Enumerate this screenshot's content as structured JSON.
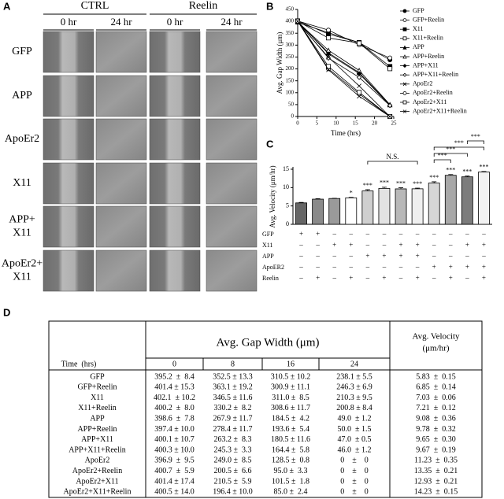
{
  "panel_labels": [
    "A",
    "B",
    "C",
    "D"
  ],
  "panel_a": {
    "groups": [
      "CTRL",
      "Reelin"
    ],
    "columns": [
      "0 hr",
      "24 hr",
      "0 hr",
      "24 hr"
    ],
    "rows": [
      [
        "GFP"
      ],
      [
        "APP"
      ],
      [
        "ApoEr2"
      ],
      [
        "X11"
      ],
      [
        "APP+",
        "X11"
      ],
      [
        "ApoEr2+",
        "X11"
      ]
    ]
  },
  "chart_data": [
    {
      "type": "line",
      "xlabel": "Time (hrs)",
      "ylabel": "Avg. Gap Width (μm)",
      "x": [
        0,
        8,
        16,
        24
      ],
      "xlim": [
        0,
        25
      ],
      "xticks": [
        0,
        5,
        10,
        15,
        20,
        25
      ],
      "ylim": [
        0,
        450
      ],
      "yticks": [
        0,
        50,
        100,
        150,
        200,
        250,
        300,
        350,
        400,
        450
      ],
      "series": [
        {
          "name": "GFP",
          "color": "#000000",
          "marker": "circle",
          "values": [
            395.2,
            352.5,
            310.5,
            238.1
          ]
        },
        {
          "name": "GFP+Reelin",
          "color": "#000000",
          "marker": "circle-open",
          "values": [
            401.4,
            363.1,
            300.9,
            246.3
          ]
        },
        {
          "name": "X11",
          "color": "#000000",
          "marker": "square",
          "values": [
            402.1,
            346.5,
            311.0,
            210.3
          ]
        },
        {
          "name": "X11+Reelin",
          "color": "#000000",
          "marker": "square-open",
          "values": [
            400.2,
            330.2,
            308.6,
            200.8
          ]
        },
        {
          "name": "APP",
          "color": "#000000",
          "marker": "triangle",
          "values": [
            398.6,
            267.9,
            184.5,
            49.0
          ]
        },
        {
          "name": "APP+Reelin",
          "color": "#000000",
          "marker": "triangle-open",
          "values": [
            397.4,
            278.4,
            193.6,
            50.0
          ]
        },
        {
          "name": "APP+X11",
          "color": "#000000",
          "marker": "diamond",
          "values": [
            400.1,
            263.2,
            180.5,
            47.0
          ]
        },
        {
          "name": "APP+X11+Reelin",
          "color": "#000000",
          "marker": "diamond-open",
          "values": [
            400.3,
            245.3,
            164.4,
            46.0
          ]
        },
        {
          "name": "ApoEr2",
          "color": "#000000",
          "marker": "cross",
          "values": [
            396.9,
            249.0,
            128.5,
            0
          ]
        },
        {
          "name": "ApoEr2+Reelin",
          "color": "#000000",
          "marker": "circle-open",
          "values": [
            400.7,
            200.5,
            95.0,
            0
          ]
        },
        {
          "name": "ApoEr2+X11",
          "color": "#000000",
          "marker": "square-open",
          "values": [
            401.4,
            210.5,
            101.5,
            0
          ]
        },
        {
          "name": "ApoEr2+X11+Reelin",
          "color": "#000000",
          "marker": "cross",
          "values": [
            400.5,
            196.4,
            85.0,
            0
          ]
        }
      ]
    },
    {
      "type": "bar",
      "ylabel": "Avg. Velocity (μm/hr)",
      "categories": [
        null,
        null,
        null,
        null,
        null,
        null,
        null,
        null,
        null,
        null,
        null,
        null
      ],
      "values": [
        5.83,
        6.85,
        7.03,
        7.21,
        9.08,
        9.78,
        9.65,
        9.67,
        11.23,
        13.35,
        12.93,
        14.23
      ],
      "errors": [
        0.15,
        0.14,
        0.06,
        0.12,
        0.36,
        0.32,
        0.3,
        0.19,
        0.35,
        0.21,
        0.21,
        0.15
      ],
      "colors": [
        "#666666",
        "#8a8a8a",
        "#9a9a9a",
        "#ffffff",
        "#cfcfcf",
        "#e2e2e2",
        "#b8b8b8",
        "#efefef",
        "#d6d6d6",
        "#a8a8a8",
        "#7c7c7c",
        "#f2f2f2"
      ],
      "ylim": [
        0,
        15
      ],
      "yticks": [
        0,
        5,
        10,
        15
      ],
      "bar_labels": [
        null,
        null,
        null,
        "*",
        "***",
        "***",
        "***",
        "***",
        "***",
        "***",
        "***",
        "***"
      ],
      "brackets": [
        {
          "from": 4,
          "to": 7,
          "label": "N.S."
        },
        {
          "from": 8,
          "to": 9,
          "label": "***"
        },
        {
          "from": 8,
          "to": 10,
          "label": "***"
        },
        {
          "from": 8,
          "to": 11,
          "label": "***"
        },
        {
          "from": 10,
          "to": 11,
          "label": "***"
        }
      ],
      "condition_matrix": [
        {
          "name": "GFP",
          "signs": [
            "+",
            "+",
            "–",
            "–",
            "–",
            "–",
            "–",
            "–",
            "–",
            "–",
            "–",
            "–"
          ]
        },
        {
          "name": "X11",
          "signs": [
            "–",
            "–",
            "+",
            "+",
            "–",
            "–",
            "+",
            "+",
            "–",
            "–",
            "+",
            "+"
          ]
        },
        {
          "name": "APP",
          "signs": [
            "–",
            "–",
            "–",
            "–",
            "+",
            "+",
            "+",
            "+",
            "–",
            "–",
            "–",
            "–"
          ]
        },
        {
          "name": "ApoER2",
          "signs": [
            "–",
            "–",
            "–",
            "–",
            "–",
            "–",
            "–",
            "–",
            "+",
            "+",
            "+",
            "+"
          ]
        },
        {
          "name": "Reelin",
          "signs": [
            "–",
            "+",
            "–",
            "+",
            "–",
            "+",
            "–",
            "+",
            "–",
            "+",
            "–",
            "+"
          ]
        }
      ]
    }
  ],
  "table": {
    "gap_header": "Avg. Gap Width (μm)",
    "velocity_header": [
      "Avg. Velocity",
      "(μm/hr)"
    ],
    "time_label": "Time  (hrs)",
    "times": [
      "0",
      "8",
      "16",
      "24"
    ],
    "rows": [
      [
        "GFP",
        "395.2  ±  8.4",
        "352.5 ± 13.3",
        "310.5 ± 10.2",
        "238.1 ± 5.5",
        "5.83  ±  0.15"
      ],
      [
        "GFP+Reelin",
        "401.4 ± 15.3",
        "363.1 ± 19.2",
        "300.9 ± 11.1",
        "246.3 ± 6.9",
        "6.85  ±  0.14"
      ],
      [
        "X11",
        "402.1  ± 10.2",
        "346.5 ± 11.6",
        "311.0 ±  8.5",
        "210.3 ± 9.5",
        "7.03  ±  0.06"
      ],
      [
        "X11+Reelin",
        "400.2  ±  8.0",
        "330.2 ±  8.2",
        "308.6 ± 11.7",
        "200.8 ± 8.4",
        "7.21  ±  0.12"
      ],
      [
        "APP",
        "398.6  ±  7.8",
        "267.9 ± 11.7",
        "184.5 ±  4.2",
        "49.0  ± 1.2",
        "9.08  ±  0.36"
      ],
      [
        "APP+Reelin",
        "397.4 ± 10.0",
        "278.4 ± 11.7",
        "193.6 ±  5.4",
        "50.0  ± 1.5",
        "9.78  ±  0.32"
      ],
      [
        "APP+X11",
        "400.1 ± 10.7",
        "263.2 ±  8.3",
        "180.5 ± 11.6",
        "47.0  ± 0.5",
        "9.65  ±  0.30"
      ],
      [
        "APP+X11+Reelin",
        "400.3 ± 10.0",
        "245.3 ±  3.3",
        "164.4 ±  5.8",
        "46.0  ± 1.2",
        "9.67  ±  0.19"
      ],
      [
        "ApoEr2",
        "396.9  ±  9.5",
        "249.0 ±  8.5",
        "128.5 ±  0.8",
        "0    ±    0",
        "11.23  ±  0.35"
      ],
      [
        "ApoEr2+Reelin",
        "400.7  ±  5.9",
        "200.5 ±  6.6",
        "95.0 ±  3.3",
        "0    ±    0",
        "13.35  ±  0.21"
      ],
      [
        "ApoEr2+X11",
        "401.4 ± 17.4",
        "210.5 ±  5.9",
        "101.5 ±  1.8",
        "0    ±    0",
        "12.93  ±  0.21"
      ],
      [
        "ApoEr2+X11+Reelin",
        "400.5 ± 14.0",
        "196.4 ± 10.0",
        "85.0 ±  2.4",
        "0    ±    0",
        "14.23  ±  0.15"
      ]
    ]
  }
}
